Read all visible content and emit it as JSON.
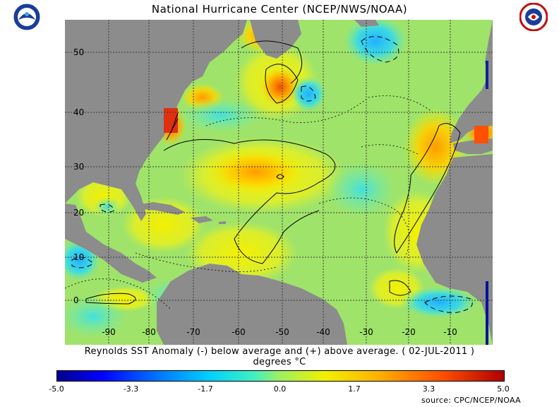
{
  "header": {
    "title": "National Hurricane Center (NCEP/NWS/NOAA)"
  },
  "logos": {
    "left": "noaa-logo",
    "right": "nws-logo"
  },
  "map": {
    "lat_labels": [
      "50",
      "40",
      "30",
      "20",
      "10",
      "0"
    ],
    "lon_labels": [
      "-90",
      "-80",
      "-70",
      "-60",
      "-50",
      "-40",
      "-30",
      "-20",
      "-10"
    ],
    "colors": {
      "land": "#8c8c8c",
      "ocean_base": "#9fe36a",
      "grid": "#3a3a3a"
    }
  },
  "caption": {
    "line1": "Reynolds SST Anomaly (-) below average and (+) above average. ( 02-JUL-2011 )",
    "line2": "degrees °C"
  },
  "colorbar": {
    "labels": [
      "-5.0",
      "-3.3",
      "-1.7",
      "0.0",
      "1.7",
      "3.3",
      "5.0"
    ]
  },
  "footer": {
    "source": "source:  CPC/NCEP/NOAA"
  }
}
